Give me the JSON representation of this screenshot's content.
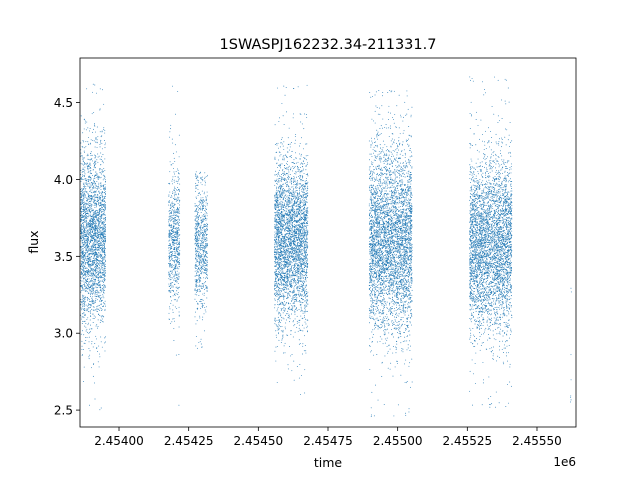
{
  "chart_data": {
    "type": "scatter",
    "title": "1SWASPJ162232.34-211331.7",
    "xlabel": "time",
    "ylabel": "flux",
    "x_offset_label": "1e6",
    "x_tick_values": [
      2.454,
      2.45425,
      2.4545,
      2.45475,
      2.455,
      2.45525,
      2.4555
    ],
    "x_tick_labels": [
      "2.45400",
      "2.45425",
      "2.45450",
      "2.45475",
      "2.45500",
      "2.45525",
      "2.45550"
    ],
    "y_tick_values": [
      2.5,
      3.0,
      3.5,
      4.0,
      4.5
    ],
    "y_tick_labels": [
      "2.5",
      "3.0",
      "3.5",
      "4.0",
      "4.5"
    ],
    "xlim": [
      2453860,
      2455640
    ],
    "ylim": [
      2.39,
      4.79
    ],
    "grid": false,
    "marker_color": "#1f77b4",
    "series": [
      {
        "segments": [
          {
            "x_start": 2453862,
            "x_end": 2453952,
            "y_center": 3.62,
            "y_spread": 0.28,
            "y_min": 2.5,
            "y_max": 4.62,
            "count": 2600
          },
          {
            "x_start": 2454178,
            "x_end": 2454218,
            "y_center": 3.6,
            "y_spread": 0.22,
            "y_min": 2.53,
            "y_max": 4.65,
            "count": 700
          },
          {
            "x_start": 2454272,
            "x_end": 2454318,
            "y_center": 3.58,
            "y_spread": 0.22,
            "y_min": 2.9,
            "y_max": 4.05,
            "count": 750
          },
          {
            "x_start": 2454558,
            "x_end": 2454678,
            "y_center": 3.6,
            "y_spread": 0.26,
            "y_min": 2.55,
            "y_max": 4.62,
            "count": 3400
          },
          {
            "x_start": 2454898,
            "x_end": 2455052,
            "y_center": 3.6,
            "y_spread": 0.3,
            "y_min": 2.45,
            "y_max": 4.58,
            "count": 4200
          },
          {
            "x_start": 2455258,
            "x_end": 2455410,
            "y_center": 3.57,
            "y_spread": 0.28,
            "y_min": 2.5,
            "y_max": 4.68,
            "count": 4000
          },
          {
            "x_start": 2455620,
            "x_end": 2455624,
            "y_center": 2.8,
            "y_spread": 0.3,
            "y_min": 2.55,
            "y_max": 3.3,
            "count": 8
          }
        ]
      }
    ]
  }
}
